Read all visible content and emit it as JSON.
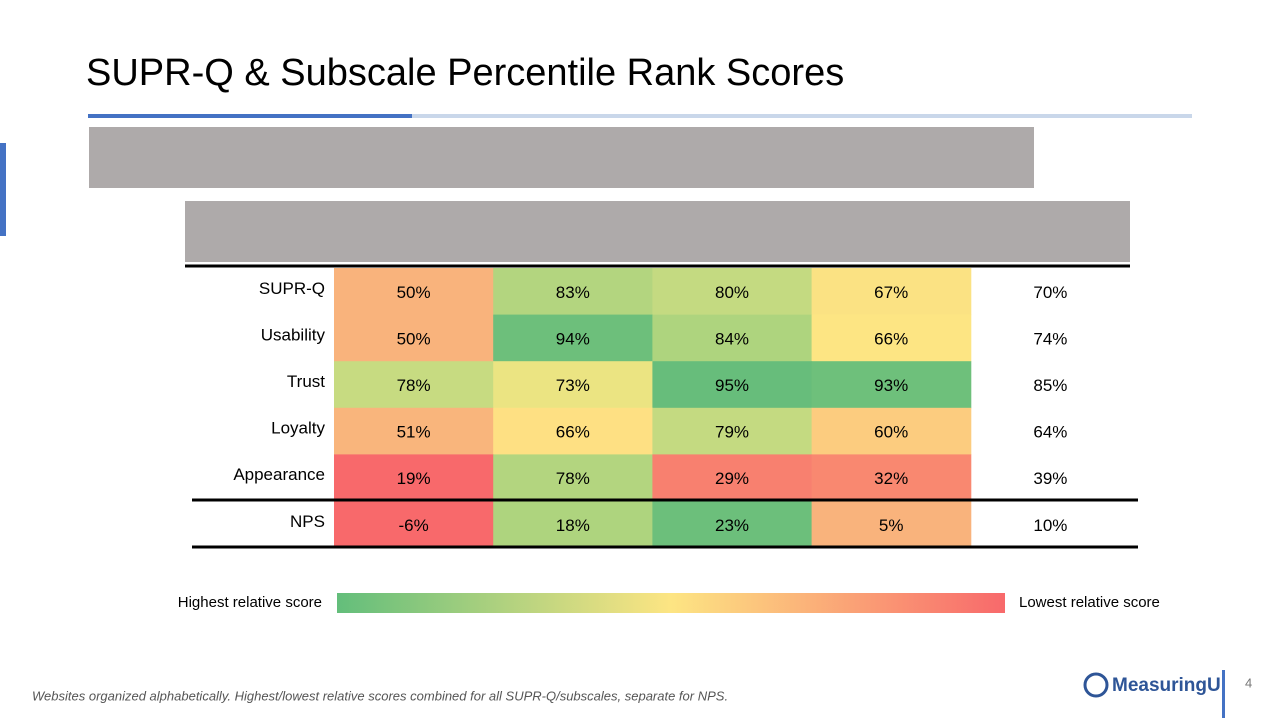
{
  "header": {
    "title": "SUPR-Q & Subscale Percentile Rank Scores"
  },
  "table": {
    "rows": [
      {
        "label": "SUPR-Q",
        "cells": [
          "50%",
          "83%",
          "80%",
          "67%",
          "70%"
        ],
        "colors": [
          "#f9b37c",
          "#b3d57f",
          "#c4da81",
          "#fbe283"
        ]
      },
      {
        "label": "Usability",
        "cells": [
          "50%",
          "94%",
          "84%",
          "66%",
          "74%"
        ],
        "colors": [
          "#f9b37c",
          "#6dbf7b",
          "#aed47e",
          "#fde583"
        ]
      },
      {
        "label": "Trust",
        "cells": [
          "78%",
          "73%",
          "95%",
          "93%",
          "85%"
        ],
        "colors": [
          "#c7db81",
          "#ebe482",
          "#67bd7b",
          "#6ec07b"
        ]
      },
      {
        "label": "Loyalty",
        "cells": [
          "51%",
          "66%",
          "79%",
          "60%",
          "64%"
        ],
        "colors": [
          "#f9b57c",
          "#fee083",
          "#c4da81",
          "#fccc7f"
        ]
      },
      {
        "label": "Appearance",
        "cells": [
          "19%",
          "78%",
          "29%",
          "32%",
          "39%"
        ],
        "colors": [
          "#f8696b",
          "#b3d57f",
          "#f8806f",
          "#f98870"
        ]
      },
      {
        "label": "NPS",
        "cells": [
          "-6%",
          "18%",
          "23%",
          "5%",
          "10%"
        ],
        "colors": [
          "#f8696b",
          "#aed47e",
          "#6cbf7b",
          "#f9b37c"
        ]
      }
    ]
  },
  "legend": {
    "high": "Highest relative score",
    "low": "Lowest relative score"
  },
  "footer": {
    "note": "Websites organized alphabetically.  Highest/lowest relative scores combined for all SUPR-Q/subscales, separate for NPS.",
    "logo": "MeasuringU",
    "page": "4"
  }
}
